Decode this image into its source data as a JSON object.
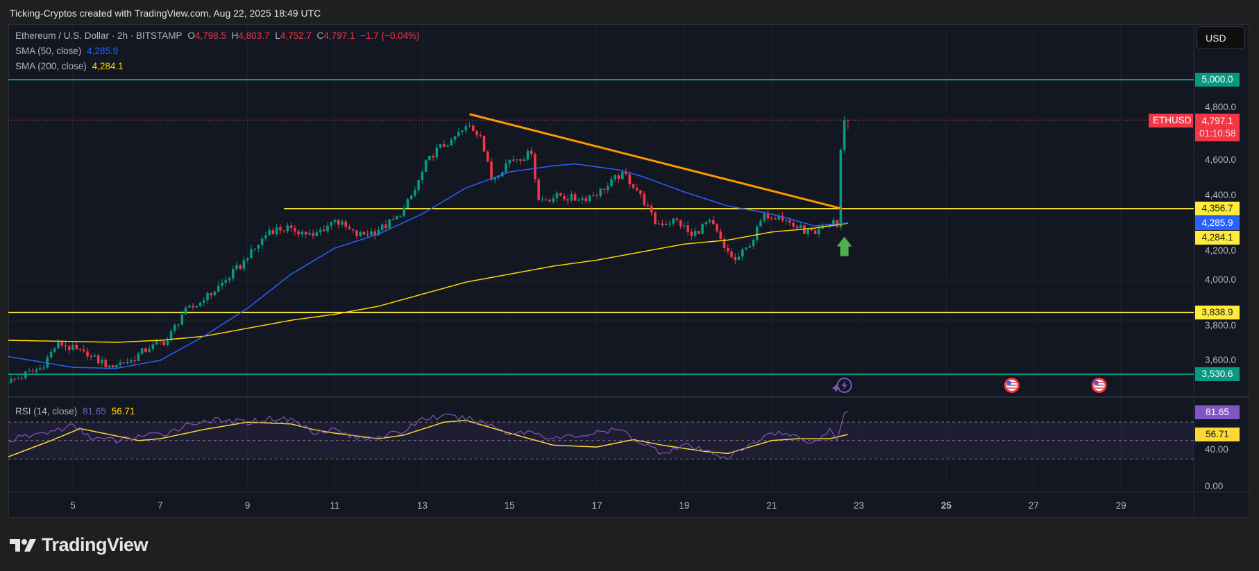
{
  "header": {
    "caption": "Ticking-Cryptos created with TradingView.com, Aug 22, 2025 18:49 UTC"
  },
  "legend": {
    "symbol": "Ethereum / U.S. Dollar · 2h · BITSTAMP",
    "o_label": "O",
    "o": "4,798.5",
    "h_label": "H",
    "h": "4,803.7",
    "l_label": "L",
    "l": "4,752.7",
    "c_label": "C",
    "c": "4,797.1",
    "change": "−1.7 (−0.04%)",
    "sma50_label": "SMA (50, close)",
    "sma50": "4,285.9",
    "sma200_label": "SMA (200, close)",
    "sma200": "4,284.1",
    "rsi_label": "RSI (14, close)",
    "rsi": "81.65",
    "rsi_ma": "56.71"
  },
  "currency_button": "USD",
  "price_axis": {
    "ticks": [
      "3,600.0",
      "3,800.0",
      "4,000.0",
      "4,200.0",
      "4,400.0",
      "4,600.0",
      "4,800.0"
    ],
    "tick_values": [
      3600,
      3800,
      4000,
      4200,
      4400,
      4600,
      4800
    ],
    "badges": {
      "level_5000": "5,000.0",
      "symbol": "ETHUSD",
      "last_price": "4,797.1",
      "countdown": "01:10:58",
      "level_4356": "4,356.7",
      "sma50": "4,285.9",
      "sma200": "4,284.1",
      "level_3838": "3,838.9",
      "level_3530": "3,530.6"
    }
  },
  "rsi_axis": {
    "ticks": [
      "40.00",
      "0.00"
    ],
    "tick_values": [
      40,
      0
    ],
    "badge_rsi": "81.65",
    "badge_ma": "56.71"
  },
  "date_axis": {
    "labels": [
      "5",
      "7",
      "9",
      "11",
      "13",
      "15",
      "17",
      "19",
      "21",
      "23",
      "25",
      "27",
      "29"
    ],
    "bold_label": "25"
  },
  "colors": {
    "up": "#089981",
    "down": "#f23645",
    "sma50": "#2962ff",
    "sma200": "#ffd600",
    "level_green": "#089981",
    "level_yellow": "#ffeb3b",
    "trendline": "#ff9800",
    "rsi": "#7e57c2",
    "rsi_ma": "#fdd835",
    "arrow": "#4caf50"
  },
  "logo": {
    "text": "TradingView"
  },
  "chart_data": {
    "type": "candlestick",
    "timeframe": "2h",
    "x_axis": "date (August 2025)",
    "ylim": [
      3480,
      5060
    ],
    "last_close": 4797.1,
    "close_path": [
      [
        "08-03 12:00",
        3490
      ],
      [
        "08-04 06:00",
        3560
      ],
      [
        "08-04 16:00",
        3690
      ],
      [
        "08-05 08:00",
        3620
      ],
      [
        "08-05 20:00",
        3575
      ],
      [
        "08-06 08:00",
        3600
      ],
      [
        "08-06 20:00",
        3680
      ],
      [
        "08-07 04:00",
        3700
      ],
      [
        "08-07 12:00",
        3830
      ],
      [
        "08-08 00:00",
        3900
      ],
      [
        "08-08 12:00",
        4000
      ],
      [
        "08-09 00:00",
        4110
      ],
      [
        "08-09 12:00",
        4250
      ],
      [
        "08-10 00:00",
        4260
      ],
      [
        "08-10 12:00",
        4220
      ],
      [
        "08-11 00:00",
        4300
      ],
      [
        "08-11 12:00",
        4220
      ],
      [
        "08-12 00:00",
        4250
      ],
      [
        "08-12 12:00",
        4320
      ],
      [
        "08-12 20:00",
        4450
      ],
      [
        "08-13 04:00",
        4620
      ],
      [
        "08-13 16:00",
        4700
      ],
      [
        "08-14 02:00",
        4770
      ],
      [
        "08-14 08:00",
        4720
      ],
      [
        "08-14 14:00",
        4500
      ],
      [
        "08-15 00:00",
        4600
      ],
      [
        "08-15 12:00",
        4630
      ],
      [
        "08-15 16:00",
        4400
      ],
      [
        "08-16 04:00",
        4420
      ],
      [
        "08-16 14:00",
        4400
      ],
      [
        "08-17 04:00",
        4450
      ],
      [
        "08-17 14:00",
        4540
      ],
      [
        "08-18 00:00",
        4430
      ],
      [
        "08-18 08:00",
        4280
      ],
      [
        "08-18 20:00",
        4300
      ],
      [
        "08-19 04:00",
        4220
      ],
      [
        "08-19 14:00",
        4300
      ],
      [
        "08-19 22:00",
        4160
      ],
      [
        "08-20 04:00",
        4100
      ],
      [
        "08-20 12:00",
        4170
      ],
      [
        "08-20 20:00",
        4330
      ],
      [
        "08-21 04:00",
        4320
      ],
      [
        "08-21 14:00",
        4260
      ],
      [
        "08-22 00:00",
        4230
      ],
      [
        "08-22 10:00",
        4300
      ],
      [
        "08-22 12:00",
        4265
      ],
      [
        "08-22 14:00",
        4650
      ],
      [
        "08-22 16:00",
        4798.5
      ],
      [
        "08-22 18:00",
        4797.1
      ]
    ],
    "sma50": [
      [
        "08-03 12:00",
        3620
      ],
      [
        "08-05 00:00",
        3565
      ],
      [
        "08-06 00:00",
        3560
      ],
      [
        "08-07 00:00",
        3600
      ],
      [
        "08-08 00:00",
        3720
      ],
      [
        "08-09 00:00",
        3860
      ],
      [
        "08-10 00:00",
        4030
      ],
      [
        "08-11 00:00",
        4160
      ],
      [
        "08-12 00:00",
        4230
      ],
      [
        "08-13 00:00",
        4330
      ],
      [
        "08-14 00:00",
        4460
      ],
      [
        "08-15 00:00",
        4540
      ],
      [
        "08-16 00:00",
        4570
      ],
      [
        "08-16 12:00",
        4580
      ],
      [
        "08-17 12:00",
        4550
      ],
      [
        "08-18 00:00",
        4520
      ],
      [
        "08-19 00:00",
        4440
      ],
      [
        "08-20 00:00",
        4370
      ],
      [
        "08-21 00:00",
        4330
      ],
      [
        "08-22 00:00",
        4270
      ],
      [
        "08-22 18:00",
        4285.9
      ]
    ],
    "sma200": [
      [
        "08-03 12:00",
        3700
      ],
      [
        "08-06 00:00",
        3690
      ],
      [
        "08-07 00:00",
        3700
      ],
      [
        "08-08 00:00",
        3720
      ],
      [
        "08-09 00:00",
        3760
      ],
      [
        "08-10 00:00",
        3800
      ],
      [
        "08-11 00:00",
        3830
      ],
      [
        "08-12 00:00",
        3870
      ],
      [
        "08-13 00:00",
        3930
      ],
      [
        "08-14 00:00",
        3990
      ],
      [
        "08-15 00:00",
        4030
      ],
      [
        "08-16 00:00",
        4070
      ],
      [
        "08-17 00:00",
        4100
      ],
      [
        "08-18 00:00",
        4140
      ],
      [
        "08-19 00:00",
        4180
      ],
      [
        "08-20 00:00",
        4200
      ],
      [
        "08-21 00:00",
        4240
      ],
      [
        "08-22 00:00",
        4260
      ],
      [
        "08-22 18:00",
        4284.1
      ]
    ],
    "levels": [
      {
        "price": 5000.0,
        "color": "green",
        "from": "08-03 12:00"
      },
      {
        "price": 4356.7,
        "color": "yellow",
        "from": "08-09 20:00"
      },
      {
        "price": 3838.9,
        "color": "yellow",
        "from": "08-03 12:00"
      },
      {
        "price": 3530.6,
        "color": "green",
        "from": "08-03 12:00"
      }
    ],
    "trendline": [
      [
        "08-14 02:00",
        4828
      ],
      [
        "08-22 14:00",
        4358
      ]
    ],
    "signal_arrow": {
      "date": "08-22 16:00",
      "price": 4120,
      "direction": "up"
    },
    "events": [
      {
        "type": "lightning",
        "date": "08-22 16:00"
      },
      {
        "type": "us-flag",
        "date": "08-26 12:00"
      },
      {
        "type": "us-flag",
        "date": "08-28 12:00"
      }
    ],
    "rsi": {
      "overbought": 70,
      "oversold": 30,
      "middle": 50,
      "values": [
        [
          "08-03 12:00",
          50
        ],
        [
          "08-04 12:00",
          60
        ],
        [
          "08-05 00:00",
          66
        ],
        [
          "08-05 12:00",
          52
        ],
        [
          "08-06 00:00",
          50
        ],
        [
          "08-06 12:00",
          55
        ],
        [
          "08-07 00:00",
          56
        ],
        [
          "08-07 12:00",
          65
        ],
        [
          "08-08 00:00",
          72
        ],
        [
          "08-09 00:00",
          70
        ],
        [
          "08-09 12:00",
          74
        ],
        [
          "08-10 00:00",
          73
        ],
        [
          "08-10 12:00",
          60
        ],
        [
          "08-11 00:00",
          62
        ],
        [
          "08-11 12:00",
          52
        ],
        [
          "08-12 00:00",
          55
        ],
        [
          "08-12 12:00",
          58
        ],
        [
          "08-13 00:00",
          74
        ],
        [
          "08-13 12:00",
          76
        ],
        [
          "08-14 00:00",
          74
        ],
        [
          "08-14 12:00",
          68
        ],
        [
          "08-15 00:00",
          58
        ],
        [
          "08-15 12:00",
          60
        ],
        [
          "08-16 00:00",
          52
        ],
        [
          "08-16 12:00",
          55
        ],
        [
          "08-17 00:00",
          58
        ],
        [
          "08-17 12:00",
          62
        ],
        [
          "08-18 00:00",
          48
        ],
        [
          "08-18 12:00",
          37
        ],
        [
          "08-19 00:00",
          45
        ],
        [
          "08-19 12:00",
          38
        ],
        [
          "08-20 00:00",
          32
        ],
        [
          "08-20 12:00",
          44
        ],
        [
          "08-21 00:00",
          60
        ],
        [
          "08-21 12:00",
          55
        ],
        [
          "08-22 00:00",
          48
        ],
        [
          "08-22 08:00",
          62
        ],
        [
          "08-22 12:00",
          50
        ],
        [
          "08-22 16:00",
          80
        ],
        [
          "08-22 18:00",
          81.65
        ]
      ],
      "ma": [
        [
          "08-03 12:00",
          32
        ],
        [
          "08-04 12:00",
          50
        ],
        [
          "08-05 04:00",
          63
        ],
        [
          "08-06 00:00",
          55
        ],
        [
          "08-06 12:00",
          50
        ],
        [
          "08-07 00:00",
          52
        ],
        [
          "08-08 00:00",
          62
        ],
        [
          "08-09 00:00",
          70
        ],
        [
          "08-10 00:00",
          68
        ],
        [
          "08-10 12:00",
          62
        ],
        [
          "08-11 00:00",
          58
        ],
        [
          "08-12 00:00",
          52
        ],
        [
          "08-12 14:00",
          56
        ],
        [
          "08-13 12:00",
          70
        ],
        [
          "08-14 00:00",
          72
        ],
        [
          "08-15 00:00",
          58
        ],
        [
          "08-16 00:00",
          45
        ],
        [
          "08-17 00:00",
          43
        ],
        [
          "08-17 20:00",
          51
        ],
        [
          "08-18 12:00",
          45
        ],
        [
          "08-19 12:00",
          38
        ],
        [
          "08-20 00:00",
          36
        ],
        [
          "08-21 00:00",
          50
        ],
        [
          "08-21 14:00",
          52
        ],
        [
          "08-22 08:00",
          52
        ],
        [
          "08-22 18:00",
          56.71
        ]
      ]
    }
  }
}
